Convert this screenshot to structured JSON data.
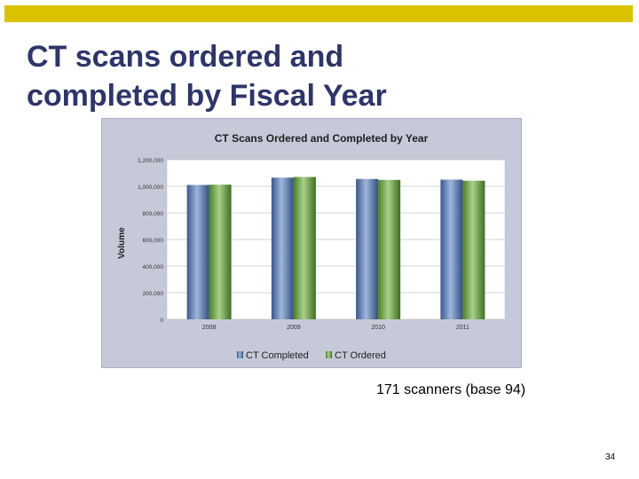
{
  "slide": {
    "title_lines": [
      "CT scans ordered and",
      "completed by Fiscal Year"
    ],
    "note": "171 scanners (base 94)",
    "page_number": "34",
    "accent_color": "#d9c300",
    "title_color": "#2e3568"
  },
  "chart_data": {
    "type": "bar",
    "title": "CT Scans Ordered and Completed by Year",
    "xlabel": "",
    "ylabel": "Volume",
    "categories": [
      "2008",
      "2009",
      "2010",
      "2011"
    ],
    "series": [
      {
        "name": "CT Completed",
        "color": "#4f6fa8",
        "values": [
          1010000,
          1065000,
          1055000,
          1050000
        ]
      },
      {
        "name": "CT Ordered",
        "color": "#5f9a3a",
        "values": [
          1012000,
          1070000,
          1048000,
          1042000
        ]
      }
    ],
    "ylim": [
      0,
      1200000
    ],
    "yticks": [
      "0",
      "200,000",
      "400,000",
      "600,000",
      "800,000",
      "1,000,000",
      "1,200,000"
    ],
    "ytick_values": [
      0,
      200000,
      400000,
      600000,
      800000,
      1000000,
      1200000
    ],
    "grid": true,
    "legend_position": "bottom"
  }
}
